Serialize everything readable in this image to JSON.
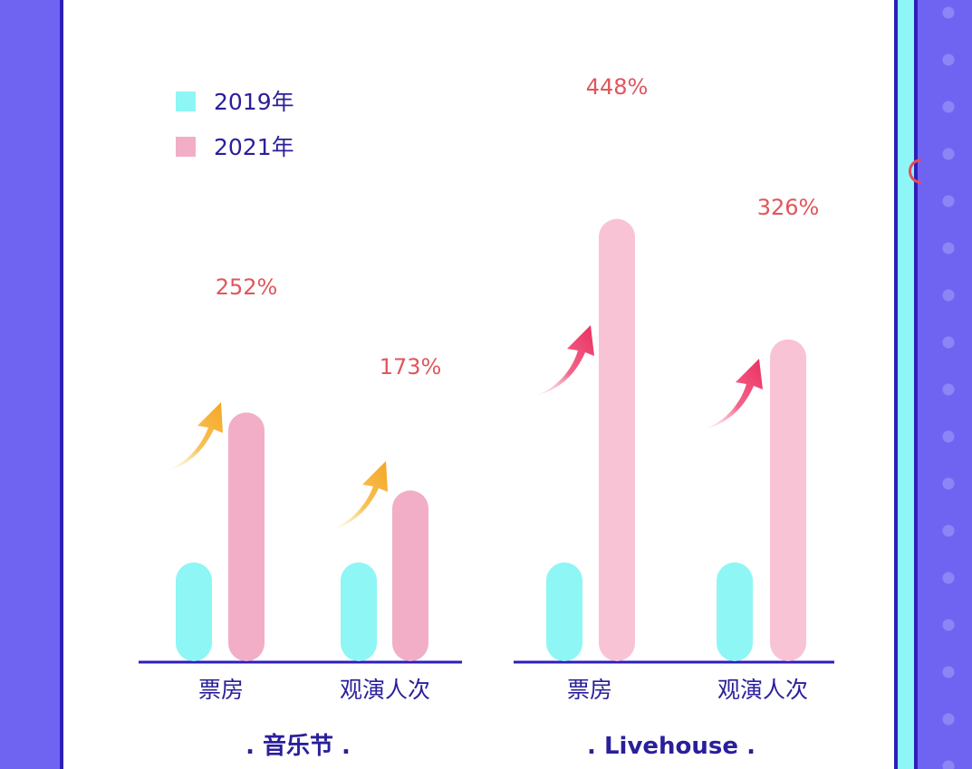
{
  "colors": {
    "series_2019": "#8ef6f4",
    "series_2021_festival": "#f2aec6",
    "series_2021_livehouse": "#f9c3d6",
    "axis": "#2e1fb8",
    "text": "#2a1f9a",
    "pct": "#e0565c",
    "arrow_festival": "#f5aa2a",
    "arrow_livehouse": "#ee3b69"
  },
  "legend": [
    {
      "label": "2019年",
      "color": "#8ef6f4"
    },
    {
      "label": "2021年",
      "color": "#f2aec6"
    }
  ],
  "chart_data": [
    {
      "type": "bar",
      "group_label": ". 音乐节 .",
      "categories": [
        "票房",
        "观演人次"
      ],
      "series": [
        {
          "name": "2019年",
          "values": [
            100,
            100
          ]
        },
        {
          "name": "2021年",
          "values": [
            252,
            173
          ]
        }
      ],
      "data_labels": [
        "252%",
        "173%"
      ],
      "arrow_icon": "arrow-up-icon"
    },
    {
      "type": "bar",
      "group_label": ". Livehouse .",
      "categories": [
        "票房",
        "观演人次"
      ],
      "series": [
        {
          "name": "2019年",
          "values": [
            100,
            100
          ]
        },
        {
          "name": "2021年",
          "values": [
            448,
            326
          ]
        }
      ],
      "data_labels": [
        "448%",
        "326%"
      ],
      "arrow_icon": "arrow-up-icon"
    }
  ]
}
